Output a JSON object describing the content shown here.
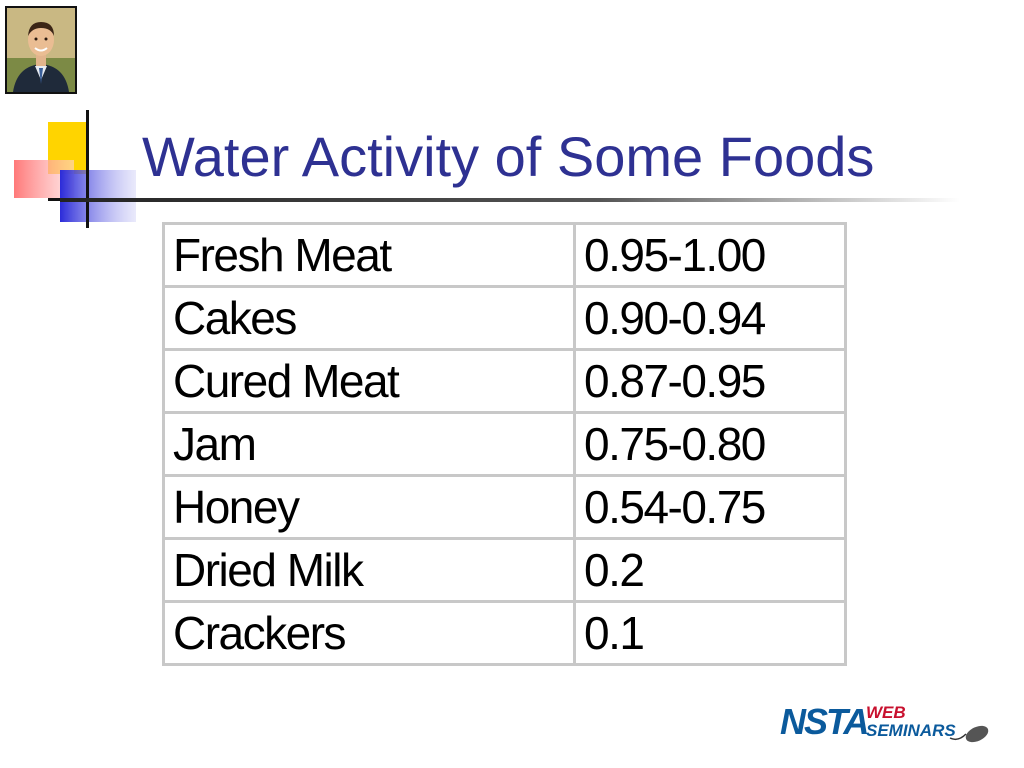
{
  "slide": {
    "title": "Water Activity of Some Foods"
  },
  "table": {
    "rows": [
      {
        "food": "Fresh Meat",
        "aw": "0.95-1.00"
      },
      {
        "food": "Cakes",
        "aw": "0.90-0.94"
      },
      {
        "food": "Cured Meat",
        "aw": "0.87-0.95"
      },
      {
        "food": "Jam",
        "aw": "0.75-0.80"
      },
      {
        "food": "Honey",
        "aw": "0.54-0.75"
      },
      {
        "food": "Dried Milk",
        "aw": "0.2"
      },
      {
        "food": "Crackers",
        "aw": "0.1"
      }
    ]
  },
  "logo": {
    "brand": "NSTA",
    "line1": "WEB",
    "line2": "SEMINARS"
  },
  "colors": {
    "title": "#2e3192",
    "logo_blue": "#0b5a9c",
    "logo_red": "#c8102e"
  }
}
